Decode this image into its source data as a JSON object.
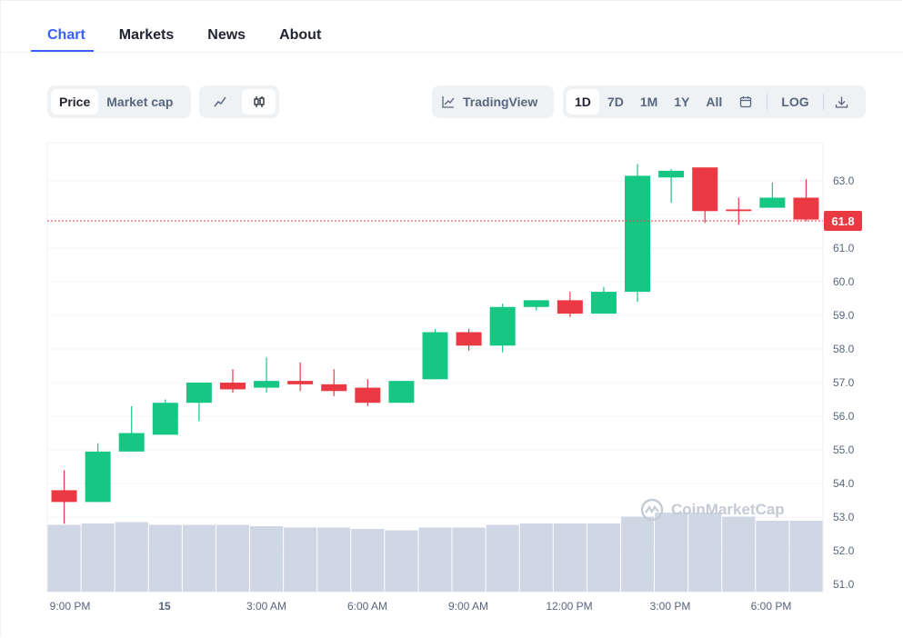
{
  "tabs": [
    {
      "label": "Chart",
      "active": true
    },
    {
      "label": "Markets",
      "active": false
    },
    {
      "label": "News",
      "active": false
    },
    {
      "label": "About",
      "active": false
    }
  ],
  "toolbar": {
    "metric": [
      {
        "label": "Price",
        "active": true
      },
      {
        "label": "Market cap",
        "active": false
      }
    ],
    "chart_style": [
      {
        "icon": "line-chart-icon",
        "active": false
      },
      {
        "icon": "candlestick-icon",
        "active": true
      }
    ],
    "tradingview_label": "TradingView",
    "ranges": [
      {
        "label": "1D",
        "active": true
      },
      {
        "label": "7D",
        "active": false
      },
      {
        "label": "1M",
        "active": false
      },
      {
        "label": "1Y",
        "active": false
      },
      {
        "label": "All",
        "active": false
      }
    ],
    "calendar_icon": "calendar-icon",
    "log_label": "LOG",
    "download_icon": "download-icon"
  },
  "watermark": "CoinMarketCap",
  "colors": {
    "up": "#16c784",
    "down": "#ea3943",
    "volume": "#cfd6e4",
    "accent": "#3861fb",
    "axis_text": "#58667e"
  },
  "chart_data": {
    "type": "candlestick",
    "current_price": 61.8,
    "current_price_label": "61.8",
    "y_ticks": [
      "63.0",
      "61.0",
      "60.0",
      "59.0",
      "58.0",
      "57.0",
      "56.0",
      "55.0",
      "54.0",
      "53.0",
      "52.0",
      "51.0"
    ],
    "x_ticks": [
      "9:00 PM",
      "15",
      "3:00 AM",
      "6:00 AM",
      "9:00 AM",
      "12:00 PM",
      "3:00 PM",
      "6:00 PM"
    ],
    "candles": [
      {
        "o": 53.8,
        "h": 54.4,
        "l": 52.8,
        "c": 53.45
      },
      {
        "o": 53.45,
        "h": 55.2,
        "l": 53.45,
        "c": 54.95
      },
      {
        "o": 54.95,
        "h": 56.3,
        "l": 54.95,
        "c": 55.5
      },
      {
        "o": 55.45,
        "h": 56.5,
        "l": 55.45,
        "c": 56.4
      },
      {
        "o": 56.4,
        "h": 57.0,
        "l": 55.85,
        "c": 57.0
      },
      {
        "o": 57.0,
        "h": 57.4,
        "l": 56.7,
        "c": 56.8
      },
      {
        "o": 56.85,
        "h": 57.75,
        "l": 56.7,
        "c": 57.05
      },
      {
        "o": 57.05,
        "h": 57.6,
        "l": 56.75,
        "c": 56.95
      },
      {
        "o": 56.95,
        "h": 57.4,
        "l": 56.6,
        "c": 56.75
      },
      {
        "o": 56.85,
        "h": 57.1,
        "l": 56.3,
        "c": 56.4
      },
      {
        "o": 56.4,
        "h": 57.05,
        "l": 56.4,
        "c": 57.05
      },
      {
        "o": 57.1,
        "h": 58.6,
        "l": 57.1,
        "c": 58.5
      },
      {
        "o": 58.5,
        "h": 58.6,
        "l": 57.95,
        "c": 58.1
      },
      {
        "o": 58.1,
        "h": 59.35,
        "l": 57.9,
        "c": 59.25
      },
      {
        "o": 59.25,
        "h": 59.45,
        "l": 59.15,
        "c": 59.45
      },
      {
        "o": 59.45,
        "h": 59.7,
        "l": 58.95,
        "c": 59.05
      },
      {
        "o": 59.05,
        "h": 59.85,
        "l": 59.05,
        "c": 59.7
      },
      {
        "o": 59.7,
        "h": 63.5,
        "l": 59.4,
        "c": 63.15
      },
      {
        "o": 63.1,
        "h": 63.35,
        "l": 62.35,
        "c": 63.3
      },
      {
        "o": 63.4,
        "h": 63.4,
        "l": 61.75,
        "c": 62.1
      },
      {
        "o": 62.15,
        "h": 62.5,
        "l": 61.7,
        "c": 62.1
      },
      {
        "o": 62.2,
        "h": 62.95,
        "l": 62.2,
        "c": 62.5
      },
      {
        "o": 62.5,
        "h": 63.05,
        "l": 61.8,
        "c": 61.85
      }
    ],
    "volume_relative": [
      0.49,
      0.5,
      0.51,
      0.49,
      0.49,
      0.49,
      0.48,
      0.47,
      0.47,
      0.46,
      0.45,
      0.47,
      0.47,
      0.49,
      0.5,
      0.5,
      0.5,
      0.55,
      0.58,
      0.58,
      0.55,
      0.52,
      0.52
    ]
  }
}
